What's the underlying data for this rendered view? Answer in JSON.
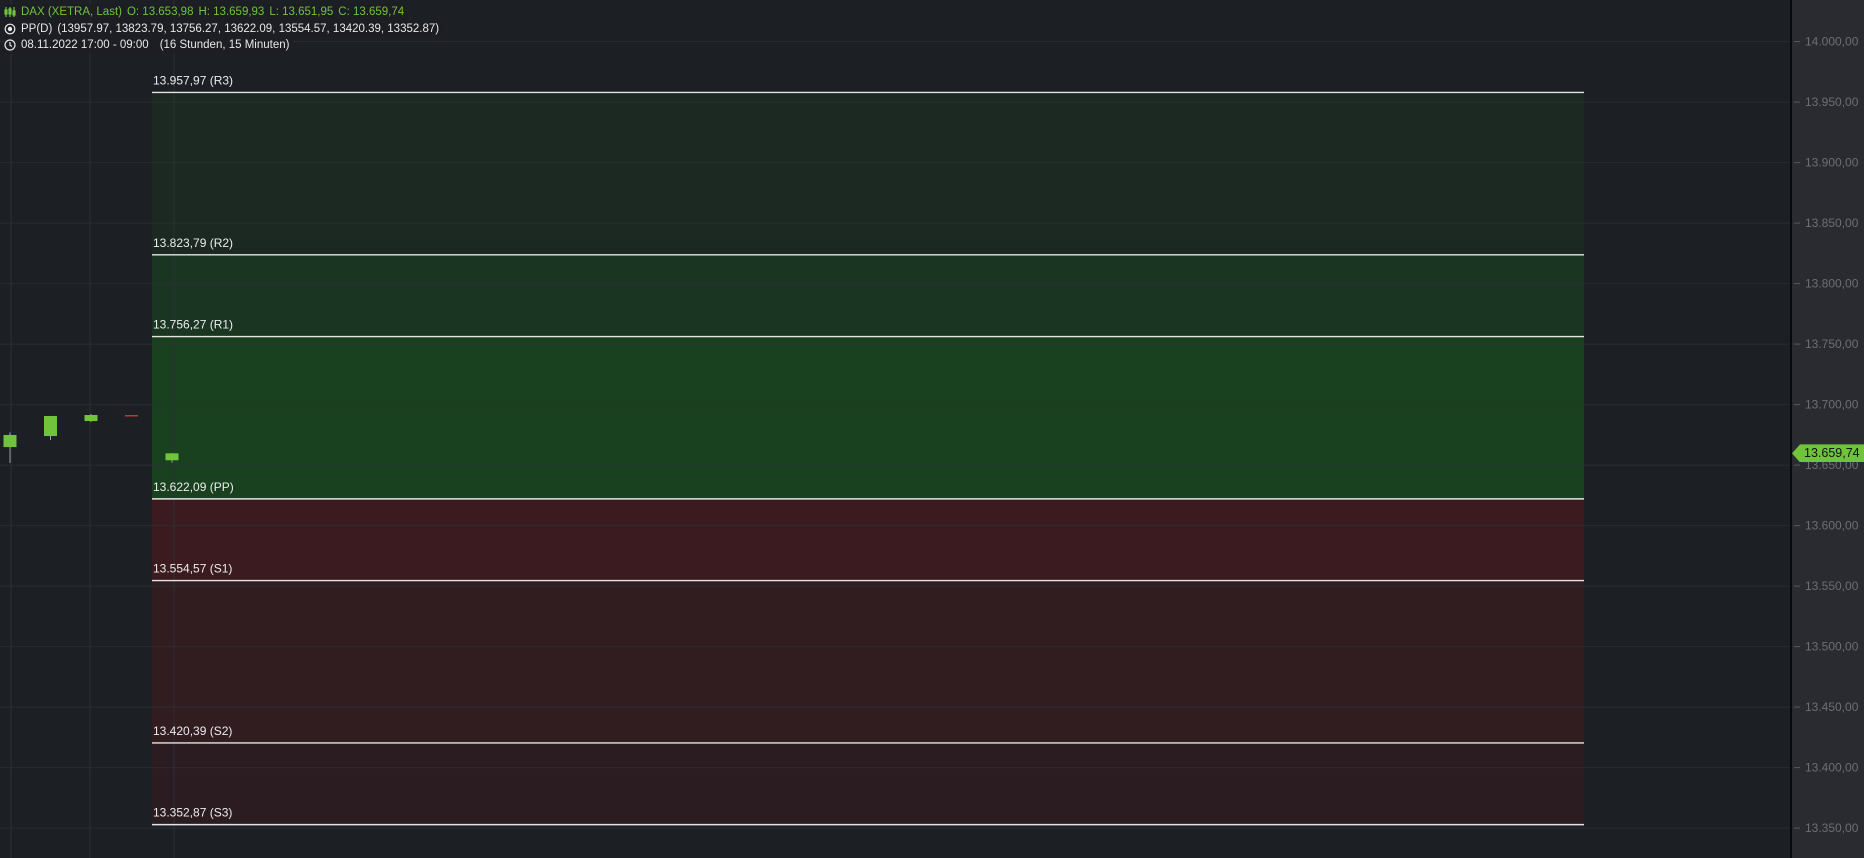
{
  "legend": {
    "instrument": "DAX (XETRA, Last)",
    "open": "O: 13.653,98",
    "high": "H: 13.659,93",
    "low": "L: 13.651,95",
    "close": "C: 13.659,74",
    "indicator": "PP(D)",
    "indicator_values": "(13957.97, 13823.79, 13756.27, 13622.09, 13554.57, 13420.39, 13352.87)",
    "period": "08.11.2022 17:00 - 09:00",
    "period_length": "(16 Stunden, 15 Minuten)",
    "icons": [
      "candlestick-icon",
      "indicator-dot-icon",
      "clock-icon"
    ]
  },
  "last_price_label": "13.659,74",
  "chart_data": {
    "type": "candlestick",
    "ylim": [
      13350,
      14000
    ],
    "y_ticks": [
      14000,
      13950,
      13900,
      13850,
      13800,
      13750,
      13700,
      13650,
      13600,
      13550,
      13500,
      13450,
      13400,
      13350
    ],
    "y_tick_labels": [
      "14.000,00",
      "13.950,00",
      "13.900,00",
      "13.850,00",
      "13.800,00",
      "13.750,00",
      "13.700,00",
      "13.650,00",
      "13.600,00",
      "13.550,00",
      "13.500,00",
      "13.450,00",
      "13.400,00",
      "13.350,00"
    ],
    "grid": true,
    "candles": [
      {
        "o": 13664.9,
        "h": 13677.0,
        "l": 13651.7,
        "c": 13674.9
      },
      {
        "o": 13674.0,
        "h": 13690.6,
        "l": 13670.7,
        "c": 13690.6
      },
      {
        "o": 13686.4,
        "h": 13692.2,
        "l": 13685.6,
        "c": 13691.4
      },
      {
        "o": 13691.4,
        "h": 13691.4,
        "l": 13691.4,
        "c": 13691.4
      },
      {
        "o": 13653.98,
        "h": 13659.93,
        "l": 13651.95,
        "c": 13659.74
      }
    ],
    "pivot_levels": [
      {
        "name": "R3",
        "value": 13957.97,
        "label": "13.957,97 (R3)"
      },
      {
        "name": "R2",
        "value": 13823.79,
        "label": "13.823,79 (R2)"
      },
      {
        "name": "R1",
        "value": 13756.27,
        "label": "13.756,27 (R1)"
      },
      {
        "name": "PP",
        "value": 13622.09,
        "label": "13.622,09 (PP)"
      },
      {
        "name": "S1",
        "value": 13554.57,
        "label": "13.554,57 (S1)"
      },
      {
        "name": "S2",
        "value": 13420.39,
        "label": "13.420,39 (S2)"
      },
      {
        "name": "S3",
        "value": 13352.87,
        "label": "13.352,87 (S3)"
      }
    ],
    "zone_colors": [
      "#1c2922",
      "#1a3522",
      "#19411f",
      "#3c1b20",
      "#311c20",
      "#2b1c21"
    ],
    "colors": {
      "up": "#6fc43c",
      "down": "#c0392b",
      "level_line": "#e6e6e6",
      "background": "#1c1f24",
      "axis_background": "#2a2b30",
      "grid": "#2c3036",
      "tick_text": "#6b6e75"
    }
  }
}
